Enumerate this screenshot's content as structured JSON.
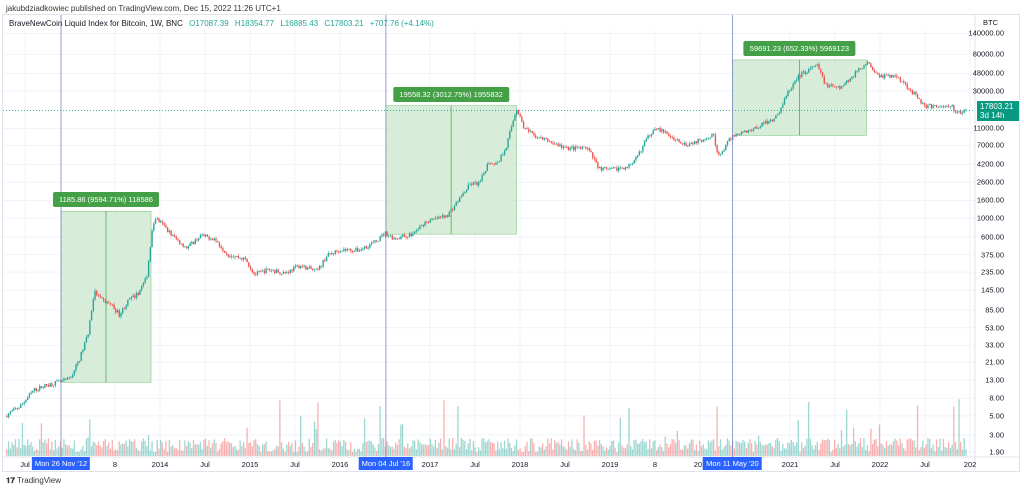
{
  "header": {
    "published": "jakubdziadkowiec published on TradingView.com, Dec 15, 2022 11:26 UTC+1"
  },
  "legend": {
    "symbol": "BraveNewCoin Liquid Index for Bitcoin, 1W, BNC",
    "open": "O17087.39",
    "high": "H18354.77",
    "low": "L16885.43",
    "close": "C17803.21",
    "change": "+707.76 (+4.14%)"
  },
  "price_scale": {
    "currency": "BTC",
    "last_price": "17803.21",
    "countdown": "3d 14h"
  },
  "annotations": [
    {
      "label": "1185.86 (9594.71%) 118586",
      "from": 2012.9,
      "to": 2013.9,
      "low": 12.3,
      "high": 1198
    },
    {
      "label": "19558.32 (3012.75%) 1955832",
      "from": 2016.51,
      "to": 2017.96,
      "low": 649,
      "high": 20207
    },
    {
      "label": "59691.23 (652.33%) 5969123",
      "from": 2020.36,
      "to": 2021.85,
      "low": 9150,
      "high": 68841
    }
  ],
  "crosshair_dates": [
    {
      "label": "Mon 26 Nov '12",
      "t": 2012.9
    },
    {
      "label": "Mon 04 Jul '16",
      "t": 2016.51
    },
    {
      "label": "Mon 11 May '20",
      "t": 2020.36
    }
  ],
  "footer": {
    "brand": "TradingView"
  },
  "colors": {
    "up": "#26a69a",
    "down": "#ef5350",
    "box": "#c8e6c9",
    "crosshair": "#2962ff",
    "label": "#43a047"
  },
  "chart_data": {
    "type": "candlestick",
    "interval": "1W",
    "yscale": "log",
    "ylim": [
      1.6,
      170000
    ],
    "xlim": [
      2012.28,
      2023.0
    ],
    "y_ticks": [
      "140000.00",
      "80000.00",
      "48000.00",
      "30000.00",
      "11000.00",
      "7000.00",
      "4200.00",
      "2600.00",
      "1600.00",
      "1000.00",
      "600.00",
      "375.00",
      "235.00",
      "145.00",
      "85.00",
      "53.00",
      "33.00",
      "21.00",
      "13.00",
      "8.00",
      "5.00",
      "3.00",
      "1.90"
    ],
    "x_ticks": [
      {
        "label": "Jul",
        "t": 2012.5
      },
      {
        "label": "8",
        "t": 2013.5
      },
      {
        "label": "2014",
        "t": 2014.0
      },
      {
        "label": "Jul",
        "t": 2014.5
      },
      {
        "label": "2015",
        "t": 2015.0
      },
      {
        "label": "Jul",
        "t": 2015.5
      },
      {
        "label": "2016",
        "t": 2016.0
      },
      {
        "label": "2017",
        "t": 2017.0
      },
      {
        "label": "Jul",
        "t": 2017.5
      },
      {
        "label": "2018",
        "t": 2018.0
      },
      {
        "label": "Jul",
        "t": 2018.5
      },
      {
        "label": "2019",
        "t": 2019.0
      },
      {
        "label": "8",
        "t": 2019.5
      },
      {
        "label": "202",
        "t": 2020.0
      },
      {
        "label": "2021",
        "t": 2021.0
      },
      {
        "label": "Jul",
        "t": 2021.5
      },
      {
        "label": "2022",
        "t": 2022.0
      },
      {
        "label": "Jul",
        "t": 2022.5
      },
      {
        "label": "202",
        "t": 2023.0
      }
    ],
    "price_path": [
      [
        2012.28,
        5
      ],
      [
        2012.45,
        6.5
      ],
      [
        2012.6,
        10
      ],
      [
        2012.75,
        11.5
      ],
      [
        2012.9,
        12.5
      ],
      [
        2013.0,
        13.5
      ],
      [
        2013.1,
        22
      ],
      [
        2013.2,
        45
      ],
      [
        2013.27,
        140
      ],
      [
        2013.35,
        110
      ],
      [
        2013.45,
        100
      ],
      [
        2013.55,
        75
      ],
      [
        2013.65,
        110
      ],
      [
        2013.75,
        130
      ],
      [
        2013.85,
        200
      ],
      [
        2013.92,
        800
      ],
      [
        2013.95,
        1000
      ],
      [
        2014.05,
        800
      ],
      [
        2014.15,
        600
      ],
      [
        2014.3,
        450
      ],
      [
        2014.45,
        620
      ],
      [
        2014.6,
        580
      ],
      [
        2014.75,
        380
      ],
      [
        2014.95,
        330
      ],
      [
        2015.05,
        220
      ],
      [
        2015.2,
        250
      ],
      [
        2015.4,
        230
      ],
      [
        2015.55,
        280
      ],
      [
        2015.75,
        240
      ],
      [
        2015.85,
        360
      ],
      [
        2016.0,
        430
      ],
      [
        2016.2,
        420
      ],
      [
        2016.4,
        530
      ],
      [
        2016.5,
        670
      ],
      [
        2016.6,
        580
      ],
      [
        2016.8,
        640
      ],
      [
        2016.95,
        900
      ],
      [
        2017.1,
        1000
      ],
      [
        2017.2,
        1100
      ],
      [
        2017.35,
        1800
      ],
      [
        2017.45,
        2500
      ],
      [
        2017.55,
        2500
      ],
      [
        2017.65,
        4500
      ],
      [
        2017.75,
        4300
      ],
      [
        2017.85,
        7000
      ],
      [
        2017.96,
        19000
      ],
      [
        2018.05,
        11000
      ],
      [
        2018.15,
        9000
      ],
      [
        2018.3,
        8000
      ],
      [
        2018.5,
        6500
      ],
      [
        2018.75,
        6400
      ],
      [
        2018.88,
        3800
      ],
      [
        2019.0,
        3600
      ],
      [
        2019.25,
        4100
      ],
      [
        2019.4,
        8000
      ],
      [
        2019.5,
        11500
      ],
      [
        2019.7,
        8500
      ],
      [
        2019.85,
        7200
      ],
      [
        2020.0,
        8000
      ],
      [
        2020.15,
        9500
      ],
      [
        2020.2,
        5000
      ],
      [
        2020.36,
        9000
      ],
      [
        2020.6,
        11000
      ],
      [
        2020.85,
        15000
      ],
      [
        2020.98,
        29000
      ],
      [
        2021.1,
        45000
      ],
      [
        2021.3,
        60000
      ],
      [
        2021.4,
        35000
      ],
      [
        2021.55,
        32000
      ],
      [
        2021.7,
        45000
      ],
      [
        2021.85,
        65000
      ],
      [
        2022.0,
        45000
      ],
      [
        2022.2,
        44000
      ],
      [
        2022.35,
        30000
      ],
      [
        2022.5,
        20000
      ],
      [
        2022.7,
        20000
      ],
      [
        2022.8,
        19500
      ],
      [
        2022.87,
        16500
      ],
      [
        2022.96,
        17803
      ]
    ]
  }
}
